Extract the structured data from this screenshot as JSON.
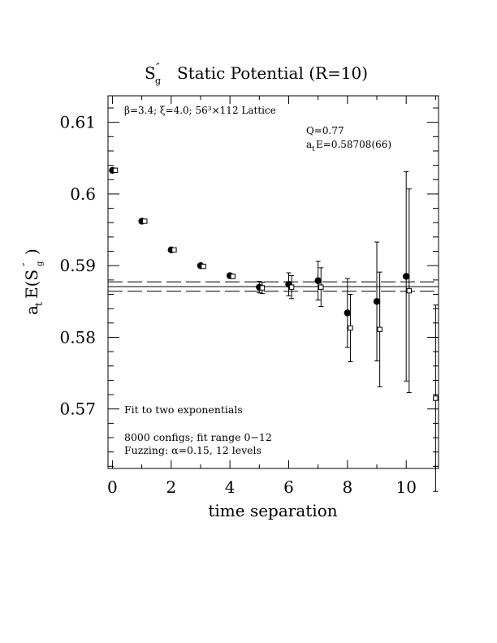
{
  "chart_data": {
    "type": "scatter",
    "title": {
      "prefix": "S",
      "prime": "″",
      "sub": "g",
      "rest": "Static Potential (R=10)"
    },
    "xlabel": "time separation",
    "ylabel": {
      "prefix": "a",
      "prefix_sub": "t",
      "main": "E(S",
      "prime": "″",
      "sub": "g",
      "close": ")"
    },
    "xlim": [
      -0.15,
      11.1
    ],
    "ylim": [
      0.5617,
      0.6137
    ],
    "x_ticks": [
      0,
      2,
      4,
      6,
      8,
      10
    ],
    "x_tick_labels": [
      "0",
      "2",
      "4",
      "6",
      "8",
      "10"
    ],
    "y_ticks": [
      0.57,
      0.58,
      0.59,
      0.6,
      0.61
    ],
    "y_tick_labels": [
      "0.57",
      "0.58",
      "0.59",
      "0.6",
      "0.61"
    ],
    "series": [
      {
        "marker": "filled-circle",
        "points": [
          {
            "x": 0,
            "y": 0.6033,
            "err": 0.0001
          },
          {
            "x": 1,
            "y": 0.5962,
            "err": 0.0001
          },
          {
            "x": 2,
            "y": 0.5922,
            "err": 0.0002
          },
          {
            "x": 3,
            "y": 0.59,
            "err": 0.0002
          },
          {
            "x": 4,
            "y": 0.5886,
            "err": 0.0003
          },
          {
            "x": 5,
            "y": 0.587,
            "err": 0.0008
          },
          {
            "x": 6,
            "y": 0.5874,
            "err": 0.0016
          },
          {
            "x": 7,
            "y": 0.5879,
            "err": 0.0027
          },
          {
            "x": 8,
            "y": 0.5834,
            "err": 0.0048
          },
          {
            "x": 9,
            "y": 0.585,
            "err": 0.0083
          },
          {
            "x": 10,
            "y": 0.5885,
            "err": 0.0146
          }
        ]
      },
      {
        "marker": "open-square",
        "points": [
          {
            "x": 0.1,
            "y": 0.6033,
            "err": 0.0001
          },
          {
            "x": 1.1,
            "y": 0.5962,
            "err": 0.0001
          },
          {
            "x": 2.1,
            "y": 0.5922,
            "err": 0.0002
          },
          {
            "x": 3.1,
            "y": 0.5899,
            "err": 0.0002
          },
          {
            "x": 4.1,
            "y": 0.5885,
            "err": 0.0003
          },
          {
            "x": 5.1,
            "y": 0.5869,
            "err": 0.0008
          },
          {
            "x": 6.1,
            "y": 0.587,
            "err": 0.0016
          },
          {
            "x": 7.1,
            "y": 0.587,
            "err": 0.0027
          },
          {
            "x": 8.1,
            "y": 0.5813,
            "err": 0.0047
          },
          {
            "x": 9.1,
            "y": 0.5811,
            "err": 0.008
          },
          {
            "x": 10.1,
            "y": 0.5865,
            "err": 0.0142
          },
          {
            "x": 11.0,
            "y": 0.5715,
            "err": 0.013
          }
        ]
      }
    ],
    "fit": {
      "central": 0.58708,
      "band": [
        0.58642,
        0.58774
      ],
      "x_range": [
        -0.15,
        11.1
      ]
    },
    "annotations": {
      "lattice": "β=3.4; ξ=4.0; 56³×112 Lattice",
      "q_value": "Q=0.77",
      "energy_prefix": "a",
      "energy_sub": "t",
      "energy_value": "E=0.58708(66)",
      "fit_desc": "Fit to two exponentials",
      "configs": "8000 configs; fit range 0−12",
      "fuzzing": "Fuzzing: α=0.15, 12 levels"
    },
    "grid": false
  }
}
